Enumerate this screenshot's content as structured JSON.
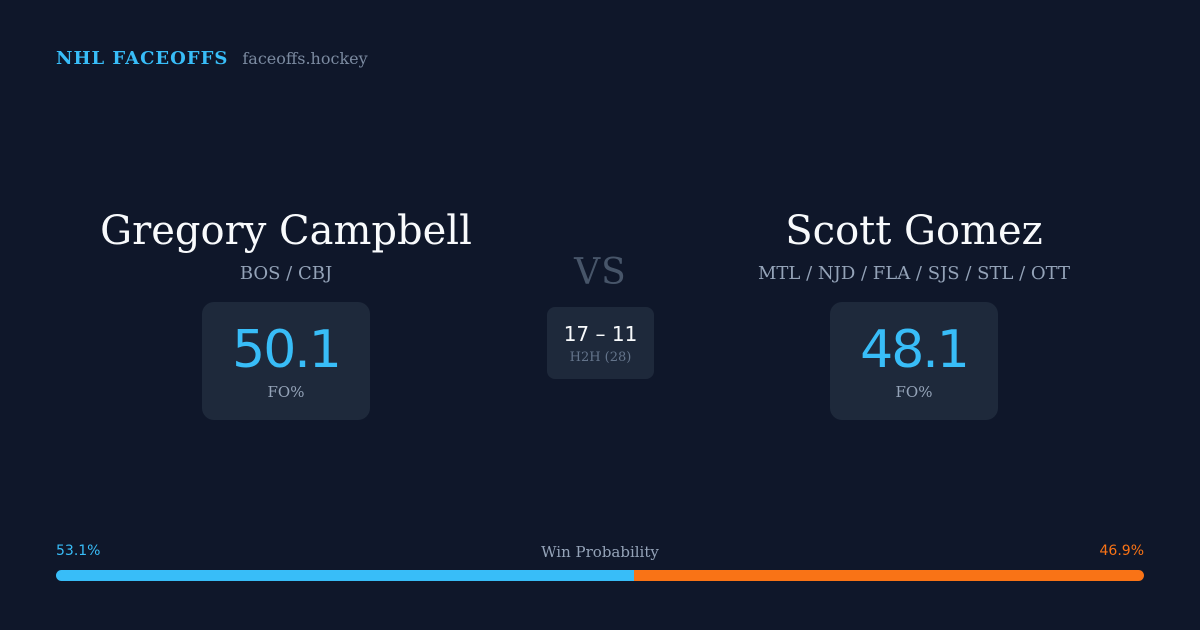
{
  "brand": {
    "name": "NHL FACEOFFS",
    "url": "faceoffs.hockey"
  },
  "players": [
    {
      "name": "Gregory Campbell",
      "teams": "BOS / CBJ",
      "fo_value": "50.1",
      "fo_label": "FO%"
    },
    {
      "name": "Scott Gomez",
      "teams": "MTL / NJD / FLA / SJS / STL / OTT",
      "fo_value": "48.1",
      "fo_label": "FO%"
    }
  ],
  "versus": {
    "label": "VS",
    "h2h_score": "17 – 11",
    "h2h_label": "H2H (28)"
  },
  "win_probability": {
    "title": "Win Probability",
    "left_label": "53.1%",
    "right_label": "46.9%",
    "left_fraction": 0.531,
    "right_fraction": 0.469
  },
  "colors": {
    "background": "#0f172a",
    "accent_blue": "#38bdf8",
    "accent_orange": "#f97316",
    "card": "#1e293b"
  }
}
